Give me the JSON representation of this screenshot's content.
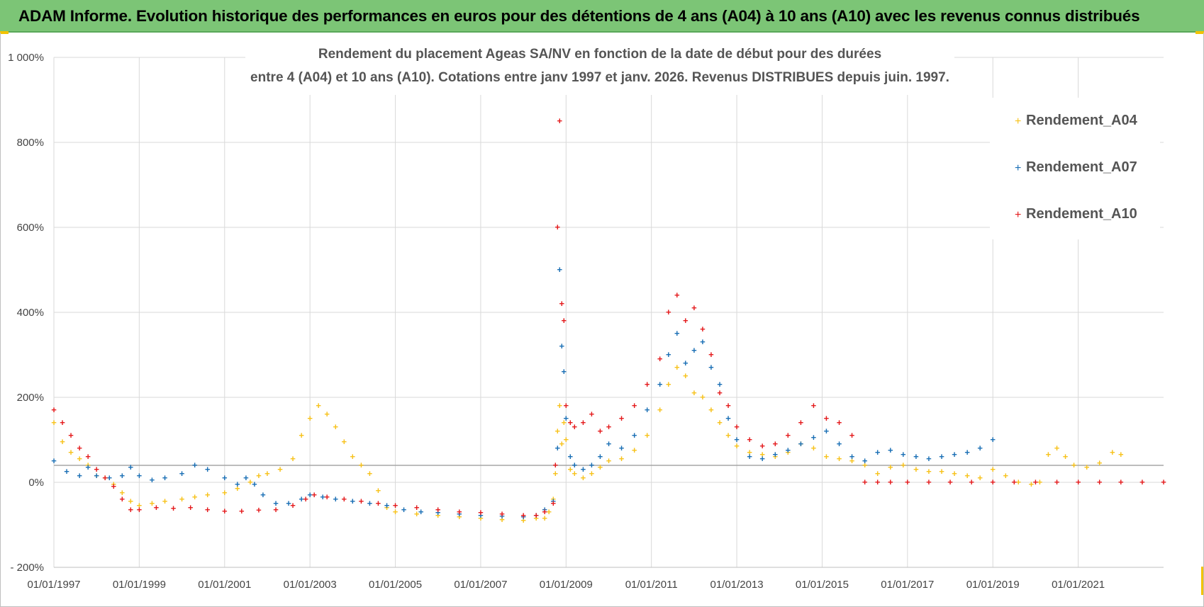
{
  "header": {
    "title": "ADAM Informe. Evolution historique des performances en euros pour des détentions de 4 ans (A04) à 10 ans (A10) avec les revenus connus distribués"
  },
  "colors": {
    "banner": "#7cc576",
    "series_A04": "#f7c21b",
    "series_A07": "#1a6fb5",
    "series_A10": "#e41a1c",
    "grid": "#d9d9d9",
    "reference_line": "#a6a6a6"
  },
  "chart_data": {
    "type": "scatter",
    "title_lines": [
      "Rendement du placement Ageas SA/NV en fonction de la date de début pour des durées",
      "entre 4 (A04) et 10 ans (A10).  Cotations entre janv 1997 et janv. 2026. Revenus DISTRIBUES depuis juin. 1997."
    ],
    "xlabel": "",
    "ylabel": "",
    "xlim": [
      1997.0,
      2023.0
    ],
    "ylim": [
      -200,
      1000
    ],
    "reference_line_y": 40,
    "x_ticks": [
      {
        "x": 1997,
        "label": "01/01/1997"
      },
      {
        "x": 1999,
        "label": "01/01/1999"
      },
      {
        "x": 2001,
        "label": "01/01/2001"
      },
      {
        "x": 2003,
        "label": "01/01/2003"
      },
      {
        "x": 2005,
        "label": "01/01/2005"
      },
      {
        "x": 2007,
        "label": "01/01/2007"
      },
      {
        "x": 2009,
        "label": "01/01/2009"
      },
      {
        "x": 2011,
        "label": "01/01/2011"
      },
      {
        "x": 2013,
        "label": "01/01/2013"
      },
      {
        "x": 2015,
        "label": "01/01/2015"
      },
      {
        "x": 2017,
        "label": "01/01/2017"
      },
      {
        "x": 2019,
        "label": "01/01/2019"
      },
      {
        "x": 2021,
        "label": "01/01/2021"
      }
    ],
    "y_ticks": [
      {
        "y": 1000,
        "label": "1 000%"
      },
      {
        "y": 800,
        "label": "800%"
      },
      {
        "y": 600,
        "label": "600%"
      },
      {
        "y": 400,
        "label": "400%"
      },
      {
        "y": 200,
        "label": "200%"
      },
      {
        "y": 0,
        "label": "0%"
      },
      {
        "y": -200,
        "label": "- 200%"
      }
    ],
    "legend": {
      "placement": "top-right",
      "entries": [
        "Rendement_A04",
        "Rendement_A07",
        "Rendement_A10"
      ]
    },
    "series": [
      {
        "name": "Rendement_A04",
        "color": "#f7c21b",
        "x": [
          1997.0,
          1997.2,
          1997.4,
          1997.6,
          1997.8,
          1998.0,
          1998.2,
          1998.4,
          1998.6,
          1998.8,
          1999.0,
          1999.3,
          1999.6,
          2000.0,
          2000.3,
          2000.6,
          2001.0,
          2001.3,
          2001.6,
          2001.8,
          2002.0,
          2002.3,
          2002.6,
          2002.8,
          2003.0,
          2003.2,
          2003.4,
          2003.6,
          2003.8,
          2004.0,
          2004.2,
          2004.4,
          2004.6,
          2004.8,
          2005.0,
          2005.5,
          2006.0,
          2006.5,
          2007.0,
          2007.5,
          2008.0,
          2008.3,
          2008.5,
          2008.6,
          2008.7,
          2008.75,
          2008.8,
          2008.85,
          2008.9,
          2008.95,
          2009.0,
          2009.1,
          2009.2,
          2009.4,
          2009.6,
          2009.8,
          2010.0,
          2010.3,
          2010.6,
          2010.9,
          2011.2,
          2011.4,
          2011.6,
          2011.8,
          2012.0,
          2012.2,
          2012.4,
          2012.6,
          2012.8,
          2013.0,
          2013.3,
          2013.6,
          2013.9,
          2014.2,
          2014.5,
          2014.8,
          2015.1,
          2015.4,
          2015.7,
          2016.0,
          2016.3,
          2016.6,
          2016.9,
          2017.2,
          2017.5,
          2017.8,
          2018.1,
          2018.4,
          2018.7,
          2019.0,
          2019.3,
          2019.6,
          2019.9,
          2020.1,
          2020.3,
          2020.5,
          2020.7,
          2020.9,
          2021.2,
          2021.5,
          2021.8,
          2022.0
        ],
        "y": [
          140,
          95,
          70,
          55,
          40,
          15,
          10,
          -5,
          -25,
          -45,
          -55,
          -50,
          -45,
          -40,
          -35,
          -30,
          -25,
          -15,
          0,
          15,
          20,
          30,
          55,
          110,
          150,
          180,
          160,
          130,
          95,
          60,
          40,
          20,
          -20,
          -60,
          -70,
          -75,
          -78,
          -82,
          -85,
          -88,
          -90,
          -85,
          -85,
          -70,
          -40,
          20,
          120,
          180,
          90,
          140,
          100,
          30,
          20,
          10,
          20,
          35,
          50,
          55,
          75,
          110,
          170,
          230,
          270,
          250,
          210,
          200,
          170,
          140,
          110,
          85,
          70,
          65,
          60,
          70,
          90,
          80,
          60,
          55,
          50,
          40,
          20,
          35,
          40,
          30,
          25,
          25,
          20,
          15,
          10,
          30,
          15,
          0,
          -5,
          0,
          65,
          80,
          60,
          40,
          35,
          45,
          70,
          65
        ]
      },
      {
        "name": "Rendement_A07",
        "color": "#1a6fb5",
        "x": [
          1997.0,
          1997.3,
          1997.6,
          1997.8,
          1998.0,
          1998.3,
          1998.6,
          1998.8,
          1999.0,
          1999.3,
          1999.6,
          2000.0,
          2000.3,
          2000.6,
          2001.0,
          2001.3,
          2001.5,
          2001.7,
          2001.9,
          2002.2,
          2002.5,
          2002.8,
          2003.0,
          2003.3,
          2003.6,
          2004.0,
          2004.4,
          2004.8,
          2005.2,
          2005.6,
          2006.0,
          2006.5,
          2007.0,
          2007.5,
          2008.0,
          2008.3,
          2008.5,
          2008.7,
          2008.8,
          2008.85,
          2008.9,
          2008.95,
          2009.0,
          2009.1,
          2009.2,
          2009.4,
          2009.6,
          2009.8,
          2010.0,
          2010.3,
          2010.6,
          2010.9,
          2011.2,
          2011.4,
          2011.6,
          2011.8,
          2012.0,
          2012.2,
          2012.4,
          2012.6,
          2012.8,
          2013.0,
          2013.3,
          2013.6,
          2013.9,
          2014.2,
          2014.5,
          2014.8,
          2015.1,
          2015.4,
          2015.7,
          2016.0,
          2016.3,
          2016.6,
          2016.9,
          2017.2,
          2017.5,
          2017.8,
          2018.1,
          2018.4,
          2018.7,
          2019.0
        ],
        "y": [
          50,
          25,
          15,
          35,
          15,
          10,
          15,
          35,
          15,
          5,
          10,
          20,
          40,
          30,
          10,
          -5,
          10,
          -5,
          -30,
          -50,
          -50,
          -40,
          -30,
          -35,
          -40,
          -45,
          -50,
          -55,
          -65,
          -70,
          -72,
          -75,
          -78,
          -80,
          -82,
          -78,
          -65,
          -45,
          80,
          500,
          320,
          260,
          150,
          60,
          40,
          30,
          40,
          60,
          90,
          80,
          110,
          170,
          230,
          300,
          350,
          280,
          310,
          330,
          270,
          230,
          150,
          100,
          60,
          55,
          65,
          75,
          90,
          105,
          120,
          90,
          60,
          50,
          70,
          75,
          65,
          60,
          55,
          60,
          65,
          70,
          80,
          100
        ]
      },
      {
        "name": "Rendement_A10",
        "color": "#e41a1c",
        "x": [
          1997.0,
          1997.2,
          1997.4,
          1997.6,
          1997.8,
          1998.0,
          1998.2,
          1998.4,
          1998.6,
          1998.8,
          1999.0,
          1999.4,
          1999.8,
          2000.2,
          2000.6,
          2001.0,
          2001.4,
          2001.8,
          2002.2,
          2002.6,
          2002.9,
          2003.1,
          2003.4,
          2003.8,
          2004.2,
          2004.6,
          2005.0,
          2005.5,
          2006.0,
          2006.5,
          2007.0,
          2007.5,
          2008.0,
          2008.3,
          2008.5,
          2008.7,
          2008.75,
          2008.8,
          2008.85,
          2008.9,
          2008.95,
          2009.0,
          2009.1,
          2009.2,
          2009.4,
          2009.6,
          2009.8,
          2010.0,
          2010.3,
          2010.6,
          2010.9,
          2011.2,
          2011.4,
          2011.6,
          2011.8,
          2012.0,
          2012.2,
          2012.4,
          2012.6,
          2012.8,
          2013.0,
          2013.3,
          2013.6,
          2013.9,
          2014.2,
          2014.5,
          2014.8,
          2015.1,
          2015.4,
          2015.7,
          2016.0,
          2016.3,
          2016.6,
          2017.0,
          2017.5,
          2018.0,
          2018.5,
          2019.0,
          2019.5,
          2020.0,
          2020.5,
          2021.0,
          2021.5,
          2022.0,
          2022.5,
          2023.0
        ],
        "y": [
          170,
          140,
          110,
          80,
          60,
          30,
          10,
          -10,
          -40,
          -65,
          -65,
          -60,
          -62,
          -60,
          -65,
          -68,
          -68,
          -66,
          -65,
          -55,
          -40,
          -30,
          -35,
          -40,
          -45,
          -50,
          -55,
          -60,
          -65,
          -70,
          -72,
          -75,
          -78,
          -78,
          -70,
          -50,
          40,
          600,
          850,
          420,
          380,
          180,
          140,
          130,
          140,
          160,
          120,
          130,
          150,
          180,
          230,
          290,
          400,
          440,
          380,
          410,
          360,
          300,
          210,
          180,
          130,
          100,
          85,
          90,
          110,
          140,
          180,
          150,
          140,
          110,
          0,
          0,
          0,
          0,
          0,
          0,
          0,
          0,
          0,
          0,
          0,
          0,
          0,
          0,
          0,
          0
        ]
      }
    ]
  }
}
